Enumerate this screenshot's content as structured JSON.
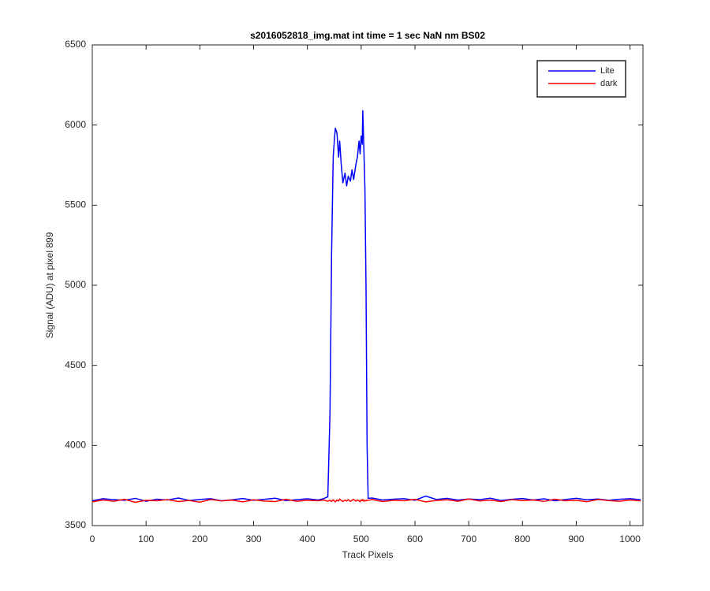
{
  "chart_data": {
    "type": "line",
    "title": "s2016052818_img.mat int time = 1 sec  NaN nm BS02",
    "xlabel": "Track Pixels",
    "ylabel": "Signal (ADU) at pixel 899",
    "x": [
      0,
      20,
      40,
      60,
      80,
      100,
      120,
      140,
      160,
      180,
      200,
      220,
      240,
      260,
      280,
      300,
      320,
      340,
      360,
      380,
      400,
      420,
      430,
      438,
      442,
      445,
      448,
      450,
      452,
      455,
      458,
      460,
      463,
      466,
      470,
      473,
      476,
      480,
      483,
      486,
      490,
      493,
      496,
      498,
      500,
      502,
      503,
      505,
      507,
      509,
      511,
      513,
      520,
      540,
      560,
      580,
      600,
      620,
      640,
      660,
      680,
      700,
      720,
      740,
      760,
      780,
      800,
      820,
      840,
      860,
      880,
      900,
      920,
      940,
      960,
      980,
      1000,
      1020
    ],
    "series": [
      {
        "name": "Lite",
        "color": "#0000ff",
        "values": [
          3655,
          3668,
          3662,
          3658,
          3670,
          3652,
          3665,
          3660,
          3672,
          3657,
          3663,
          3668,
          3655,
          3661,
          3669,
          3658,
          3664,
          3671,
          3656,
          3662,
          3667,
          3660,
          3668,
          3680,
          4200,
          5200,
          5800,
          5900,
          5980,
          5950,
          5800,
          5900,
          5750,
          5640,
          5700,
          5620,
          5680,
          5650,
          5720,
          5660,
          5750,
          5800,
          5900,
          5820,
          5930,
          5880,
          6090,
          5850,
          5600,
          5000,
          4000,
          3670,
          3672,
          3660,
          3665,
          3668,
          3658,
          3684,
          3663,
          3670,
          3659,
          3666,
          3662,
          3671,
          3657,
          3664,
          3669,
          3660,
          3667,
          3655,
          3663,
          3670,
          3661,
          3666,
          3658,
          3664,
          3668,
          3662
        ]
      },
      {
        "name": "dark",
        "color": "#ff0000",
        "values": [
          3648,
          3660,
          3652,
          3664,
          3645,
          3658,
          3655,
          3662,
          3650,
          3657,
          3646,
          3663,
          3654,
          3659,
          3648,
          3661,
          3653,
          3650,
          3664,
          3652,
          3658,
          3655,
          3660,
          3652,
          3658,
          3650,
          3662,
          3655,
          3648,
          3660,
          3653,
          3665,
          3657,
          3650,
          3659,
          3654,
          3662,
          3651,
          3658,
          3664,
          3653,
          3660,
          3655,
          3649,
          3661,
          3656,
          3663,
          3652,
          3658,
          3654,
          3660,
          3657,
          3663,
          3650,
          3658,
          3655,
          3664,
          3648,
          3657,
          3661,
          3652,
          3666,
          3654,
          3659,
          3650,
          3662,
          3656,
          3660,
          3651,
          3665,
          3655,
          3658,
          3649,
          3663,
          3656,
          3652,
          3660,
          3654
        ]
      }
    ],
    "xlim": [
      0,
      1024
    ],
    "xticks": [
      0,
      100,
      200,
      300,
      400,
      500,
      600,
      700,
      800,
      900,
      1000
    ],
    "ylim": [
      3500,
      6500
    ],
    "yticks": [
      3500,
      4000,
      4500,
      5000,
      5500,
      6000,
      6500
    ],
    "legend": "northeast"
  }
}
